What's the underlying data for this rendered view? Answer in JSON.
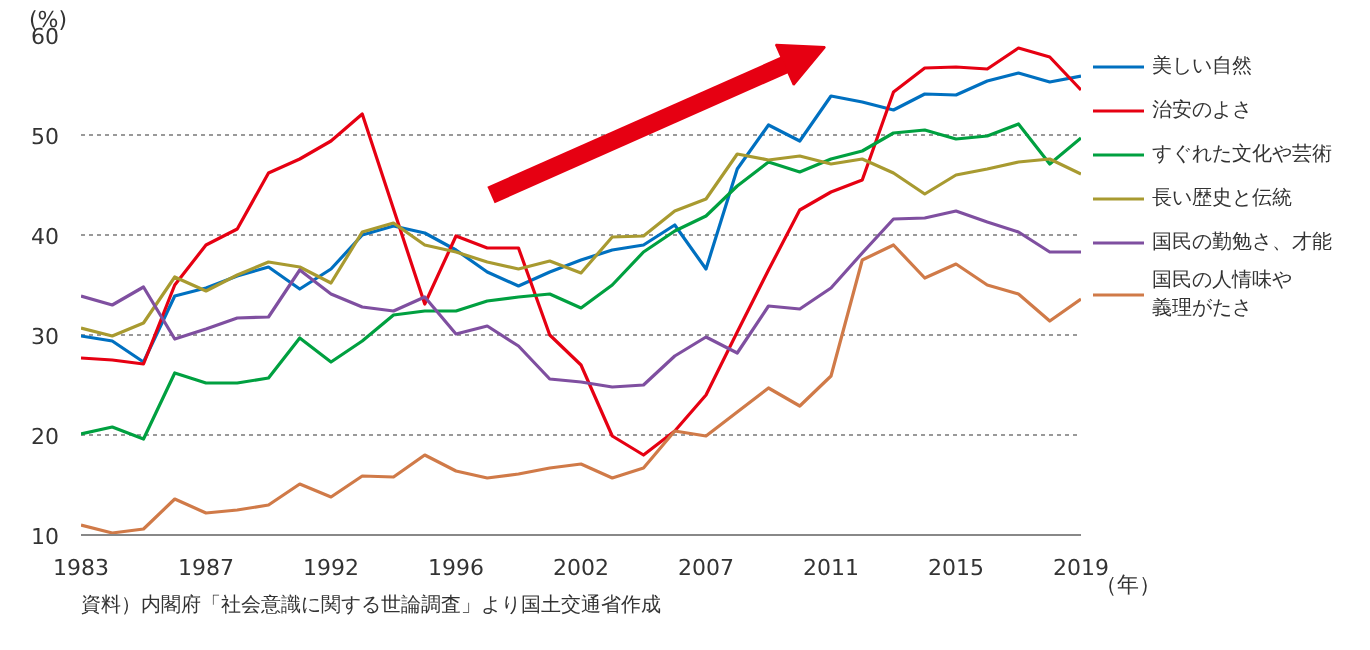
{
  "chart_data": {
    "type": "line",
    "xlabel": "（年）",
    "ylabel": "(%)",
    "categories": [
      "1983",
      null,
      null,
      null,
      "1987",
      null,
      null,
      null,
      "1992",
      null,
      null,
      null,
      "1996",
      null,
      null,
      null,
      "2002",
      null,
      null,
      null,
      "2007",
      null,
      null,
      null,
      "2011",
      null,
      null,
      null,
      "2015",
      null,
      null,
      null,
      "2019"
    ],
    "ylim": [
      10,
      60
    ],
    "yticks": [
      10,
      20,
      30,
      40,
      50,
      60
    ],
    "grid": "y",
    "legend": "right",
    "marker": "none",
    "line_style": "solid",
    "annotations": [
      "資料）内閣府「社会意識に関する世論調査」より国土交通省作成"
    ],
    "series": [
      {
        "name": "美しい自然",
        "color": "#0070c0",
        "values": [
          29.9,
          29.4,
          27.3,
          33.9,
          34.7,
          35.9,
          36.8,
          34.6,
          36.6,
          40.0,
          40.9,
          40.2,
          38.5,
          36.3,
          34.9,
          36.3,
          37.5,
          38.5,
          39.0,
          41.0,
          36.6,
          46.6,
          51.0,
          49.4,
          53.9,
          53.3,
          52.5,
          54.1,
          54.0,
          55.4,
          56.2,
          55.3,
          55.9
        ]
      },
      {
        "name": "治安のよさ",
        "color": "#e60012",
        "values": [
          27.7,
          27.5,
          27.1,
          35.0,
          39.0,
          40.6,
          46.2,
          47.6,
          49.4,
          52.1,
          42.6,
          33.1,
          39.9,
          38.7,
          38.7,
          30.0,
          27.0,
          19.9,
          18.0,
          20.4,
          24.0,
          30.3,
          36.5,
          42.5,
          44.3,
          45.5,
          54.3,
          56.7,
          56.8,
          56.6,
          58.7,
          57.8,
          54.5
        ]
      },
      {
        "name": "すぐれた文化や芸術",
        "color": "#00a040",
        "values": [
          20.1,
          20.8,
          19.6,
          26.2,
          25.2,
          25.2,
          25.7,
          29.7,
          27.3,
          29.4,
          32.0,
          32.4,
          32.4,
          33.4,
          33.8,
          34.1,
          32.7,
          35.0,
          38.3,
          40.4,
          41.9,
          44.9,
          47.3,
          46.3,
          47.6,
          48.4,
          50.2,
          50.5,
          49.6,
          49.9,
          51.1,
          47.1,
          49.7
        ]
      },
      {
        "name": "長い歴史と伝統",
        "color": "#a89a30",
        "values": [
          30.7,
          29.9,
          31.2,
          35.8,
          34.4,
          36.0,
          37.3,
          36.8,
          35.2,
          40.3,
          41.2,
          39.0,
          38.3,
          37.3,
          36.6,
          37.4,
          36.2,
          39.8,
          39.9,
          42.4,
          43.6,
          48.1,
          47.5,
          47.9,
          47.1,
          47.6,
          46.2,
          44.1,
          46.0,
          46.6,
          47.3,
          47.6,
          46.1
        ]
      },
      {
        "name": "国民の勤勉さ、才能",
        "color": "#7f4fa0",
        "values": [
          33.9,
          33.0,
          34.8,
          29.6,
          30.6,
          31.7,
          31.8,
          36.5,
          34.1,
          32.8,
          32.4,
          33.8,
          30.1,
          30.9,
          28.9,
          25.6,
          25.3,
          24.8,
          25.0,
          27.9,
          29.8,
          28.2,
          32.9,
          32.6,
          34.7,
          38.2,
          41.6,
          41.7,
          42.4,
          41.3,
          40.3,
          38.3,
          38.3
        ]
      },
      {
        "name": "国民の人情味や義理がたさ",
        "color": "#d07a48",
        "values": [
          11.0,
          10.2,
          10.6,
          13.6,
          12.2,
          12.5,
          13.0,
          15.1,
          13.8,
          15.9,
          15.8,
          18.0,
          16.4,
          15.7,
          16.1,
          16.7,
          17.1,
          15.7,
          16.7,
          20.4,
          19.9,
          22.3,
          24.7,
          22.9,
          25.9,
          37.5,
          39.0,
          35.7,
          37.1,
          35.0,
          34.1,
          31.4,
          33.6
        ]
      }
    ]
  }
}
